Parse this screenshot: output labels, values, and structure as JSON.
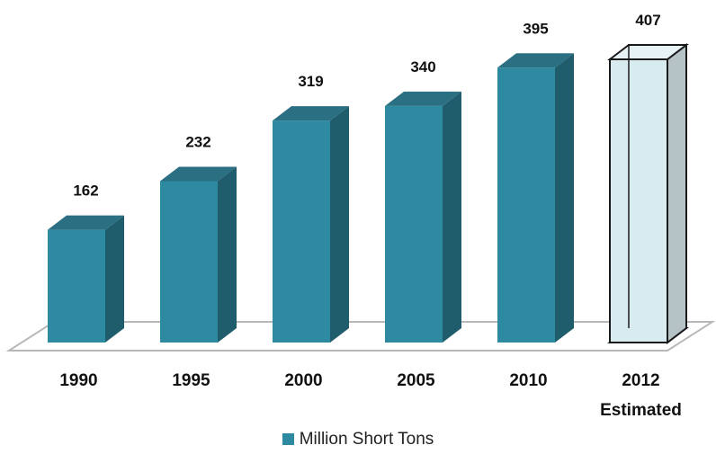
{
  "chart_data": {
    "type": "bar",
    "style": "3d-column",
    "categories": [
      "1990",
      "1995",
      "2000",
      "2005",
      "2010",
      "2012"
    ],
    "category_sublabels": [
      "",
      "",
      "",
      "",
      "",
      "Estimated"
    ],
    "series": [
      {
        "name": "Million Short Tons",
        "values": [
          162,
          232,
          319,
          340,
          395,
          407
        ],
        "estimated": [
          false,
          false,
          false,
          false,
          false,
          true
        ]
      }
    ],
    "data_labels": [
      "162",
      "232",
      "319",
      "340",
      "395",
      "407"
    ],
    "ylim": [
      0,
      407
    ],
    "grid": false,
    "legend_position": "bottom"
  },
  "colors": {
    "bar_front": "#2e8aa0",
    "bar_top": "#2a6f82",
    "bar_side": "#205d6c",
    "estimated_front": "#d7ebf0",
    "estimated_side": "#b6c3c6",
    "estimated_top": "#e6f2f5",
    "floor_fill": "#ffffff",
    "floor_stroke": "#b8b8b8",
    "legend_swatch": "#2e8aa0"
  }
}
